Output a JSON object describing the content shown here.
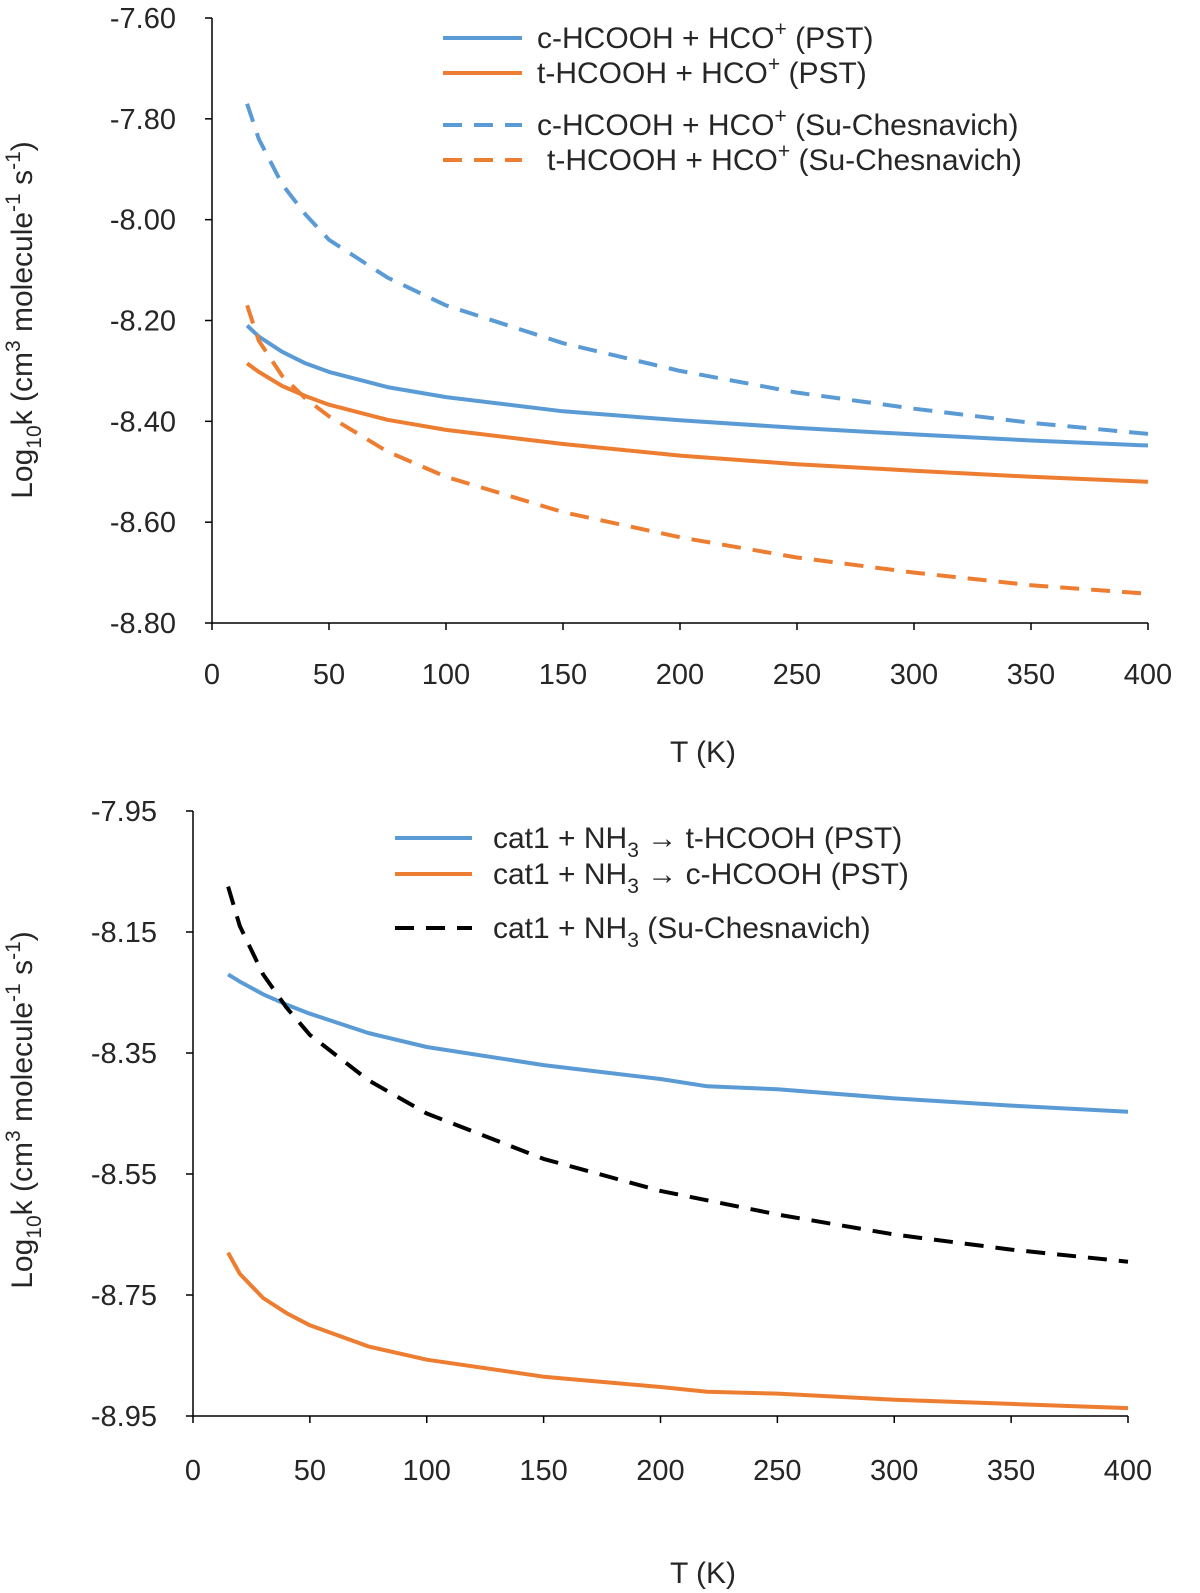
{
  "chart_data": [
    {
      "type": "line",
      "xlabel": "T (K)",
      "ylabel": "Log10k (cm3 molecule-1 s-1)",
      "ylabel_parts": {
        "a": "Log",
        "b": "10",
        "c": "k (cm",
        "d": "3",
        "e": " molecule",
        "f": "-1",
        "g": " s",
        "h": "-1",
        "i": ")"
      },
      "xlim": [
        0,
        400
      ],
      "ylim": [
        -8.8,
        -7.6
      ],
      "x_ticks": [
        "0",
        "50",
        "100",
        "150",
        "200",
        "250",
        "300",
        "350",
        "400"
      ],
      "y_ticks": [
        "-7.60",
        "-7.80",
        "-8.00",
        "-8.20",
        "-8.40",
        "-8.60",
        "-8.80"
      ],
      "legend_position": "top-right",
      "series": [
        {
          "name": "c-HCOOH + HCO+ (PST)",
          "legend": {
            "pre": "c-HCOOH + HCO",
            "sup": "+",
            "post": " (PST)"
          },
          "color": "#5B9BD5",
          "dashed": false,
          "x": [
            15,
            20,
            30,
            40,
            50,
            75,
            100,
            150,
            200,
            250,
            300,
            350,
            400
          ],
          "y": [
            -8.21,
            -8.232,
            -8.262,
            -8.285,
            -8.302,
            -8.332,
            -8.352,
            -8.38,
            -8.398,
            -8.413,
            -8.426,
            -8.438,
            -8.448
          ]
        },
        {
          "name": "t-HCOOH + HCO+ (PST)",
          "legend": {
            "pre": "t-HCOOH + HCO",
            "sup": "+",
            "post": " (PST)"
          },
          "color": "#ED7D31",
          "dashed": false,
          "x": [
            15,
            20,
            30,
            40,
            50,
            75,
            100,
            150,
            200,
            250,
            300,
            350,
            400
          ],
          "y": [
            -8.285,
            -8.302,
            -8.33,
            -8.35,
            -8.367,
            -8.397,
            -8.417,
            -8.445,
            -8.468,
            -8.485,
            -8.498,
            -8.51,
            -8.52
          ]
        },
        {
          "name": "c-HCOOH + HCO+ (Su-Chesnavich)",
          "legend": {
            "pre": "c-HCOOH + HCO",
            "sup": "+",
            "post": " (Su-Chesnavich)"
          },
          "color": "#5B9BD5",
          "dashed": true,
          "x": [
            15,
            20,
            30,
            40,
            50,
            75,
            100,
            150,
            200,
            250,
            300,
            350,
            400
          ],
          "y": [
            -7.77,
            -7.84,
            -7.93,
            -7.99,
            -8.04,
            -8.115,
            -8.17,
            -8.245,
            -8.3,
            -8.343,
            -8.375,
            -8.403,
            -8.425
          ]
        },
        {
          "name": "t-HCOOH + HCO+ (Su-Chesnavich)",
          "legend": {
            "pre": "t-HCOOH + HCO",
            "sup": "+",
            "post": " (Su-Chesnavich)"
          },
          "color": "#ED7D31",
          "dashed": true,
          "x": [
            15,
            20,
            30,
            40,
            50,
            75,
            100,
            150,
            200,
            250,
            300,
            350,
            400
          ],
          "y": [
            -8.17,
            -8.24,
            -8.31,
            -8.355,
            -8.39,
            -8.46,
            -8.51,
            -8.58,
            -8.63,
            -8.67,
            -8.7,
            -8.725,
            -8.742
          ]
        }
      ]
    },
    {
      "type": "line",
      "xlabel": "T (K)",
      "ylabel": "Log10k (cm3 molecule-1 s-1)",
      "ylabel_parts": {
        "a": "Log",
        "b": "10",
        "c": "k (cm",
        "d": "3",
        "e": " molecule",
        "f": "-1",
        "g": " s",
        "h": "-1",
        "i": ")"
      },
      "xlim": [
        0,
        400
      ],
      "ylim": [
        -8.95,
        -7.95
      ],
      "x_ticks": [
        "0",
        "50",
        "100",
        "150",
        "200",
        "250",
        "300",
        "350",
        "400"
      ],
      "y_ticks": [
        "-7.95",
        "-8.15",
        "-8.35",
        "-8.55",
        "-8.75",
        "-8.95"
      ],
      "legend_position": "top-right",
      "series": [
        {
          "name": "cat1 + NH3 → t-HCOOH (PST)",
          "legend": {
            "pre": "cat1 + NH",
            "sub": "3",
            "post": " → t-HCOOH (PST)"
          },
          "color": "#5B9BD5",
          "dashed": false,
          "x": [
            15,
            20,
            30,
            40,
            50,
            75,
            100,
            150,
            200,
            220,
            250,
            300,
            350,
            400
          ],
          "y": [
            -8.22,
            -8.232,
            -8.253,
            -8.27,
            -8.285,
            -8.317,
            -8.34,
            -8.37,
            -8.393,
            -8.405,
            -8.41,
            -8.425,
            -8.437,
            -8.447
          ]
        },
        {
          "name": "cat1 + NH3 → c-HCOOH (PST)",
          "legend": {
            "pre": "cat1 + NH",
            "sub": "3",
            "post": " → c-HCOOH (PST)"
          },
          "color": "#ED7D31",
          "dashed": false,
          "x": [
            15,
            20,
            30,
            40,
            50,
            75,
            100,
            150,
            200,
            220,
            250,
            300,
            350,
            400
          ],
          "y": [
            -8.68,
            -8.715,
            -8.755,
            -8.78,
            -8.8,
            -8.835,
            -8.857,
            -8.885,
            -8.902,
            -8.91,
            -8.913,
            -8.923,
            -8.93,
            -8.937
          ]
        },
        {
          "name": "cat1 + NH3 (Su-Chesnavich)",
          "legend": {
            "pre": "cat1 + NH",
            "sub": "3",
            "post": " (Su-Chesnavich)"
          },
          "color": "#000000",
          "dashed": true,
          "x": [
            15,
            20,
            30,
            40,
            50,
            75,
            100,
            150,
            200,
            250,
            300,
            350,
            400
          ],
          "y": [
            -8.075,
            -8.14,
            -8.22,
            -8.275,
            -8.32,
            -8.395,
            -8.45,
            -8.525,
            -8.578,
            -8.617,
            -8.65,
            -8.675,
            -8.695
          ]
        }
      ]
    }
  ]
}
